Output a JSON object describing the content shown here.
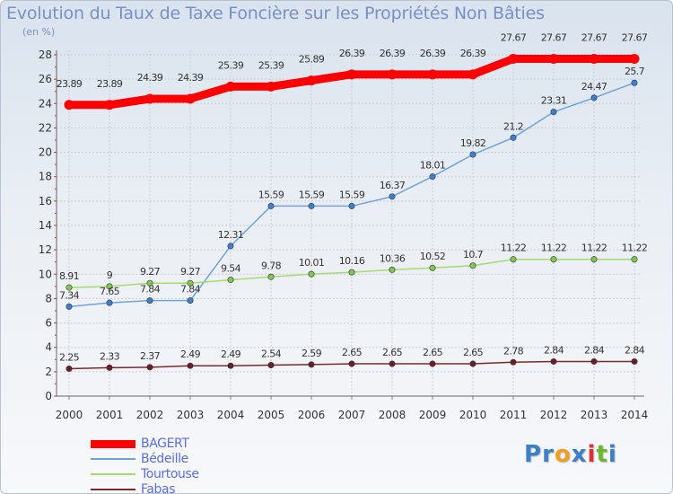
{
  "title": "Evolution du Taux de Taxe Foncière sur les Propriétés Non Bâties",
  "unit_label": "(en %)",
  "logo": {
    "text": "Proxiti",
    "letters": [
      "P",
      "r",
      "o",
      "x",
      "i",
      "t",
      "i"
    ],
    "colors": [
      "#3b7fc4",
      "#3b7fc4",
      "#f0a020",
      "#3b7fc4",
      "#e03030",
      "#6cb830",
      "#3b7fc4"
    ]
  },
  "chart_data": {
    "type": "line",
    "x": [
      "2000",
      "2001",
      "2002",
      "2003",
      "2004",
      "2005",
      "2006",
      "2007",
      "2008",
      "2009",
      "2010",
      "2011",
      "2012",
      "2013",
      "2014"
    ],
    "ylim": [
      0,
      28
    ],
    "yticks": [
      "0",
      "2",
      "4",
      "6",
      "8",
      "10",
      "12",
      "14",
      "16",
      "18",
      "20",
      "22",
      "24",
      "26",
      "28"
    ],
    "grid": true,
    "legend_position": "bottom-left",
    "series": [
      {
        "name": "BAGERT",
        "color": "#ff0000",
        "width": 9,
        "values": [
          23.89,
          23.89,
          24.39,
          24.39,
          25.39,
          25.39,
          25.89,
          26.39,
          26.39,
          26.39,
          26.39,
          27.67,
          27.67,
          27.67,
          27.67
        ],
        "labels": [
          "23.89",
          "23.89",
          "24.39",
          "24.39",
          "25.39",
          "25.39",
          "25.89",
          "26.39",
          "26.39",
          "26.39",
          "26.39",
          "27.67",
          "27.67",
          "27.67",
          "27.67"
        ]
      },
      {
        "name": "Bédeille",
        "color": "#6fa3d8",
        "marker": "#3f7fc6",
        "width": 1.5,
        "values": [
          7.34,
          7.65,
          7.84,
          7.84,
          12.31,
          15.59,
          15.59,
          15.59,
          16.37,
          18.01,
          19.82,
          21.2,
          23.31,
          24.47,
          25.7
        ],
        "labels": [
          "7.34",
          "7.65",
          "7.84",
          "7.84",
          "12.31",
          "15.59",
          "15.59",
          "15.59",
          "16.37",
          "18.01",
          "19.82",
          "21.2",
          "23.31",
          "24.47",
          "25.7"
        ]
      },
      {
        "name": "Tourtouse",
        "color": "#a4dd6e",
        "marker": "#7fc84a",
        "width": 1.5,
        "values": [
          8.91,
          9,
          9.27,
          9.27,
          9.54,
          9.78,
          10.01,
          10.16,
          10.36,
          10.52,
          10.7,
          11.22,
          11.22,
          11.22,
          11.22
        ],
        "labels": [
          "8.91",
          "9",
          "9.27",
          "9.27",
          "9.54",
          "9.78",
          "10.01",
          "10.16",
          "10.36",
          "10.52",
          "10.7",
          "11.22",
          "11.22",
          "11.22",
          "11.22"
        ]
      },
      {
        "name": "Fabas",
        "color": "#7a2a2a",
        "marker": "#6b1f1f",
        "width": 1.5,
        "values": [
          2.25,
          2.33,
          2.37,
          2.49,
          2.49,
          2.54,
          2.59,
          2.65,
          2.65,
          2.65,
          2.65,
          2.78,
          2.84,
          2.84,
          2.84
        ],
        "labels": [
          "2.25",
          "2.33",
          "2.37",
          "2.49",
          "2.49",
          "2.54",
          "2.59",
          "2.65",
          "2.65",
          "2.65",
          "2.65",
          "2.78",
          "2.84",
          "2.84",
          "2.84"
        ]
      }
    ]
  }
}
